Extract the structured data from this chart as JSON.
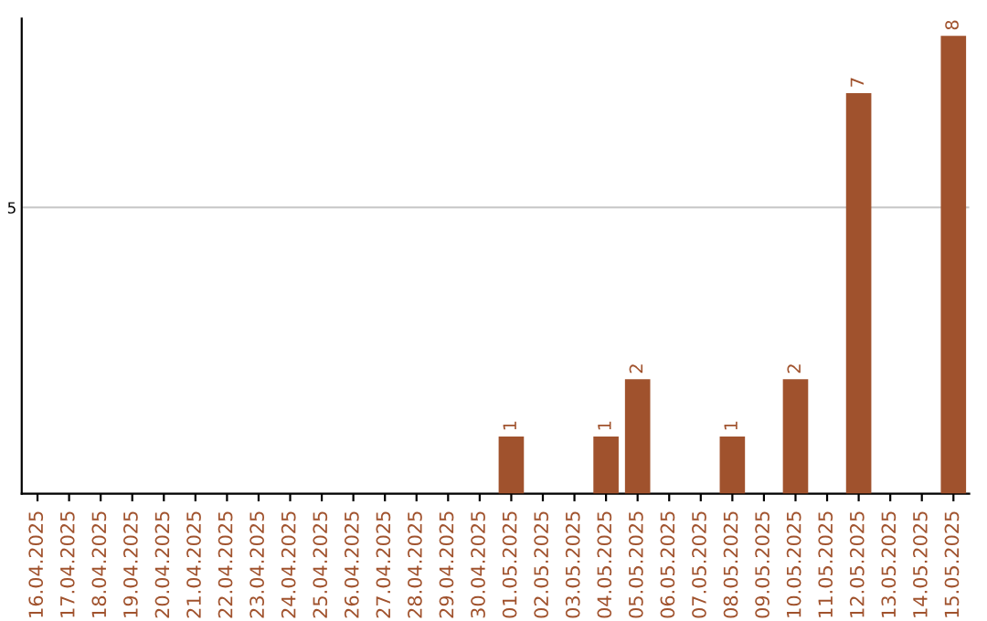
{
  "chart_data": {
    "type": "bar",
    "categories": [
      "16.04.2025",
      "17.04.2025",
      "18.04.2025",
      "19.04.2025",
      "20.04.2025",
      "21.04.2025",
      "22.04.2025",
      "23.04.2025",
      "24.04.2025",
      "25.04.2025",
      "26.04.2025",
      "27.04.2025",
      "28.04.2025",
      "29.04.2025",
      "30.04.2025",
      "01.05.2025",
      "02.05.2025",
      "03.05.2025",
      "04.05.2025",
      "05.05.2025",
      "06.05.2025",
      "07.05.2025",
      "08.05.2025",
      "09.05.2025",
      "10.05.2025",
      "11.05.2025",
      "12.05.2025",
      "13.05.2025",
      "14.05.2025",
      "15.05.2025"
    ],
    "values": [
      null,
      null,
      null,
      null,
      null,
      null,
      null,
      null,
      null,
      null,
      null,
      null,
      null,
      null,
      null,
      1,
      null,
      null,
      1,
      2,
      null,
      null,
      1,
      null,
      2,
      null,
      7,
      null,
      null,
      8
    ],
    "data_labels": true,
    "color": "#a0522d",
    "ylim": [
      0,
      8.3
    ],
    "yticks": [
      {
        "value": 0,
        "label": null
      },
      5
    ],
    "grid": "y"
  }
}
